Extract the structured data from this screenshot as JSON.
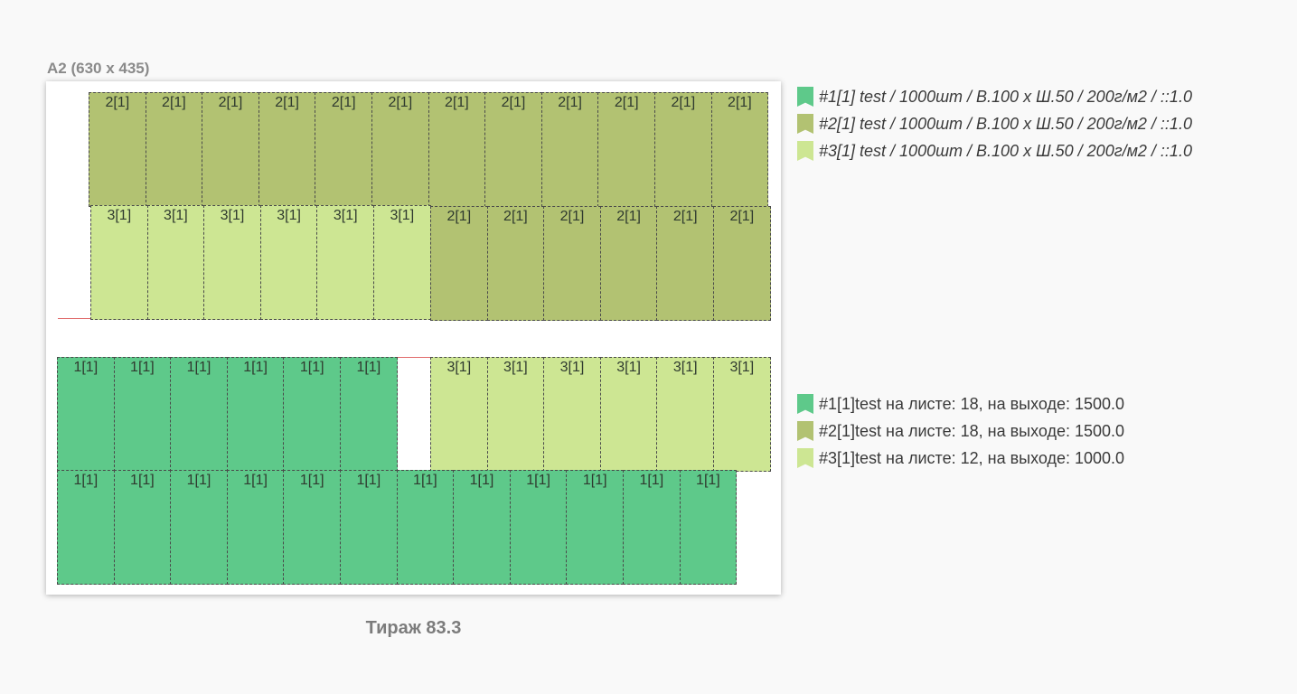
{
  "sheet": {
    "title": "А2 (630 x 435)"
  },
  "colors": {
    "item1": "#5ec98a",
    "item2": "#b2c272",
    "item3": "#cde693",
    "cut_line": "#e06a6a"
  },
  "blocks": {
    "upper": {
      "row1": [
        "2[1]",
        "2[1]",
        "2[1]",
        "2[1]",
        "2[1]",
        "2[1]",
        "2[1]",
        "2[1]",
        "2[1]",
        "2[1]",
        "2[1]",
        "2[1]"
      ],
      "row2_left": [
        "3[1]",
        "3[1]",
        "3[1]",
        "3[1]",
        "3[1]",
        "3[1]"
      ],
      "row2_right": [
        "2[1]",
        "2[1]",
        "2[1]",
        "2[1]",
        "2[1]",
        "2[1]"
      ]
    },
    "lower": {
      "row1_left": [
        "1[1]",
        "1[1]",
        "1[1]",
        "1[1]",
        "1[1]",
        "1[1]"
      ],
      "row1_right": [
        "3[1]",
        "3[1]",
        "3[1]",
        "3[1]",
        "3[1]",
        "3[1]"
      ],
      "row2": [
        "1[1]",
        "1[1]",
        "1[1]",
        "1[1]",
        "1[1]",
        "1[1]",
        "1[1]",
        "1[1]",
        "1[1]",
        "1[1]",
        "1[1]",
        "1[1]"
      ]
    }
  },
  "legend_items": [
    {
      "label": "#1[1] test / 1000шт / В.100 х Ш.50 / 200г/м2 /  ::1.0",
      "color": "#5ec98a"
    },
    {
      "label": "#2[1] test / 1000шт / В.100 х Ш.50 / 200г/м2 /  ::1.0",
      "color": "#b2c272"
    },
    {
      "label": "#3[1] test / 1000шт / В.100 х Ш.50 / 200г/м2 /  ::1.0",
      "color": "#cde693"
    }
  ],
  "summary_items": [
    {
      "label": "#1[1]test на листе: 18, на выходе: 1500.0",
      "color": "#5ec98a"
    },
    {
      "label": "#2[1]test на листе: 18, на выходе: 1500.0",
      "color": "#b2c272"
    },
    {
      "label": "#3[1]test на листе: 12, на выходе: 1000.0",
      "color": "#cde693"
    }
  ],
  "total_label": "Тираж 83.3"
}
